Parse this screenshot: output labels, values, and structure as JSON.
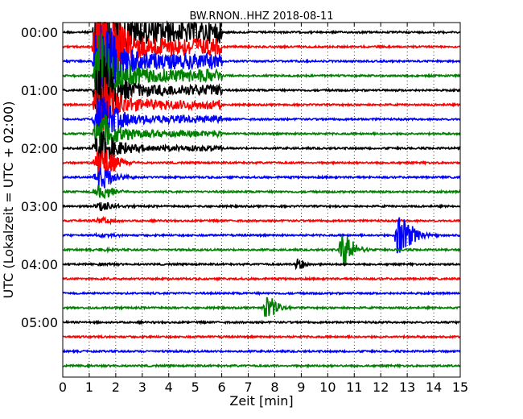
{
  "chart_data": {
    "type": "line",
    "title": "BW.RNON..HHZ 2018-08-11",
    "xlabel": "Zeit  [min]",
    "ylabel": "UTC (Lokalzeit = UTC + 02:00)",
    "xlim": [
      0,
      15
    ],
    "x_ticks": [
      "0",
      "1",
      "2",
      "3",
      "4",
      "5",
      "6",
      "7",
      "8",
      "9",
      "10",
      "11",
      "12",
      "13",
      "14",
      "15"
    ],
    "y_ticks": [
      "00:00",
      "01:00",
      "02:00",
      "03:00",
      "04:00",
      "05:00"
    ],
    "grid": "vertical dotted",
    "trace_count": 24,
    "trace_interval_min": 15,
    "trace_colors": [
      "#000000",
      "#ff0000",
      "#0000ff",
      "#008000"
    ],
    "events": [
      {
        "trace": 0,
        "start_min": 1.1,
        "end_min": 6.0,
        "peak_amplitude": 1.0,
        "note": "large earthquake, clipped over many traces"
      },
      {
        "trace": 14,
        "start_min": 12.5,
        "end_min": 14.2,
        "peak_amplitude": 0.9
      },
      {
        "trace": 15,
        "start_min": 10.4,
        "end_min": 11.6,
        "peak_amplitude": 0.75
      },
      {
        "trace": 16,
        "start_min": 8.7,
        "end_min": 9.3,
        "peak_amplitude": 0.25
      },
      {
        "trace": 19,
        "start_min": 7.5,
        "end_min": 8.6,
        "peak_amplitude": 0.55
      }
    ]
  }
}
